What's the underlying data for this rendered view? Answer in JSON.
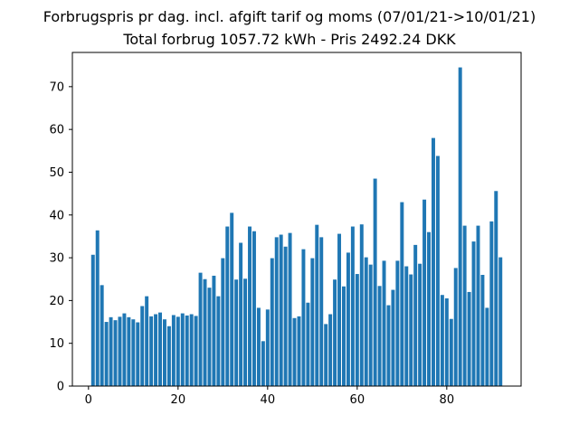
{
  "chart_data": {
    "type": "bar",
    "title": "Forbrugspris pr dag. incl. afgift tarif og moms (07/01/21->10/01/21)",
    "subtitle": "Total forbrug 1057.72 kWh - Pris 2492.24 DKK",
    "xlabel": "",
    "ylabel": "",
    "xlim": [
      -3.6,
      96.6
    ],
    "ylim": [
      0,
      78
    ],
    "xticks": [
      0,
      20,
      40,
      60,
      80
    ],
    "yticks": [
      0,
      10,
      20,
      30,
      40,
      50,
      60,
      70
    ],
    "grid": false,
    "bar_color": "#1f77b4",
    "x": [
      1,
      2,
      3,
      4,
      5,
      6,
      7,
      8,
      9,
      10,
      11,
      12,
      13,
      14,
      15,
      16,
      17,
      18,
      19,
      20,
      21,
      22,
      23,
      24,
      25,
      26,
      27,
      28,
      29,
      30,
      31,
      32,
      33,
      34,
      35,
      36,
      37,
      38,
      39,
      40,
      41,
      42,
      43,
      44,
      45,
      46,
      47,
      48,
      49,
      50,
      51,
      52,
      53,
      54,
      55,
      56,
      57,
      58,
      59,
      60,
      61,
      62,
      63,
      64,
      65,
      66,
      67,
      68,
      69,
      70,
      71,
      72,
      73,
      74,
      75,
      76,
      77,
      78,
      79,
      80,
      81,
      82,
      83,
      84,
      85,
      86,
      87,
      88,
      89,
      90,
      91,
      92
    ],
    "values": [
      30.7,
      36.4,
      23.6,
      15.0,
      16.1,
      15.4,
      16.2,
      17.0,
      16.1,
      15.6,
      14.9,
      18.7,
      21.0,
      16.3,
      16.8,
      17.2,
      15.6,
      14.0,
      16.6,
      16.2,
      17.0,
      16.5,
      16.8,
      16.4,
      26.5,
      25.0,
      23.0,
      25.8,
      21.0,
      29.9,
      37.3,
      40.5,
      24.9,
      33.5,
      25.1,
      37.3,
      36.2,
      18.3,
      10.5,
      17.9,
      29.9,
      34.8,
      35.4,
      32.6,
      35.8,
      15.9,
      16.3,
      32.0,
      19.5,
      29.9,
      37.7,
      34.8,
      14.5,
      16.8,
      24.9,
      35.6,
      23.3,
      31.2,
      37.3,
      26.2,
      37.8,
      30.1,
      28.4,
      48.5,
      23.4,
      29.3,
      18.9,
      22.5,
      29.3,
      43.0,
      28.0,
      26.1,
      33.0,
      28.6,
      43.6,
      36.0,
      58.0,
      53.8,
      21.3,
      20.5,
      15.7,
      27.6,
      74.5,
      37.5,
      22.0,
      33.8,
      37.5,
      26.0,
      18.3,
      38.5,
      45.6,
      30.1
    ]
  }
}
